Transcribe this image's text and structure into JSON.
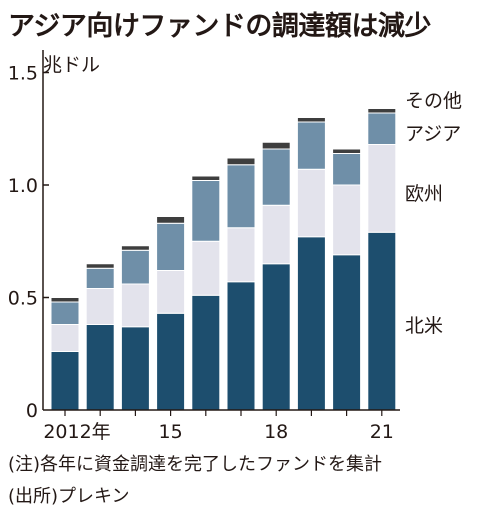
{
  "title": "アジア向けファンドの調達額は減少",
  "unit_label": "兆ドル",
  "notes": [
    "(注)各年に資金調達を完了したファンドを集計",
    "(出所)プレキン"
  ],
  "colors": {
    "north_america": "#1d4e6e",
    "europe": "#e3e3ec",
    "asia": "#6f8fa8",
    "other": "#3e3e3e"
  },
  "chart_data": {
    "type": "bar",
    "stacked": true,
    "categories": [
      "2012",
      "2013",
      "2014",
      "2015",
      "2016",
      "2017",
      "2018",
      "2019",
      "2020",
      "2021"
    ],
    "x_tick_labels": [
      "2012年",
      "",
      "",
      "15",
      "",
      "",
      "18",
      "",
      "",
      "21"
    ],
    "y_ticks": [
      "0",
      "0.5",
      "1.0",
      "1.5"
    ],
    "ylim": [
      0,
      1.6
    ],
    "ylabel": "兆ドル",
    "legend_placement": "right",
    "series": [
      {
        "name": "北米",
        "values": [
          0.26,
          0.38,
          0.37,
          0.43,
          0.51,
          0.57,
          0.65,
          0.77,
          0.69,
          0.79
        ]
      },
      {
        "name": "欧州",
        "values": [
          0.12,
          0.16,
          0.19,
          0.19,
          0.24,
          0.24,
          0.26,
          0.3,
          0.31,
          0.39
        ]
      },
      {
        "name": "アジア",
        "values": [
          0.1,
          0.09,
          0.15,
          0.21,
          0.27,
          0.28,
          0.25,
          0.21,
          0.14,
          0.14
        ]
      },
      {
        "name": "その他",
        "values": [
          0.02,
          0.02,
          0.02,
          0.03,
          0.02,
          0.03,
          0.03,
          0.02,
          0.02,
          0.02
        ]
      }
    ]
  }
}
